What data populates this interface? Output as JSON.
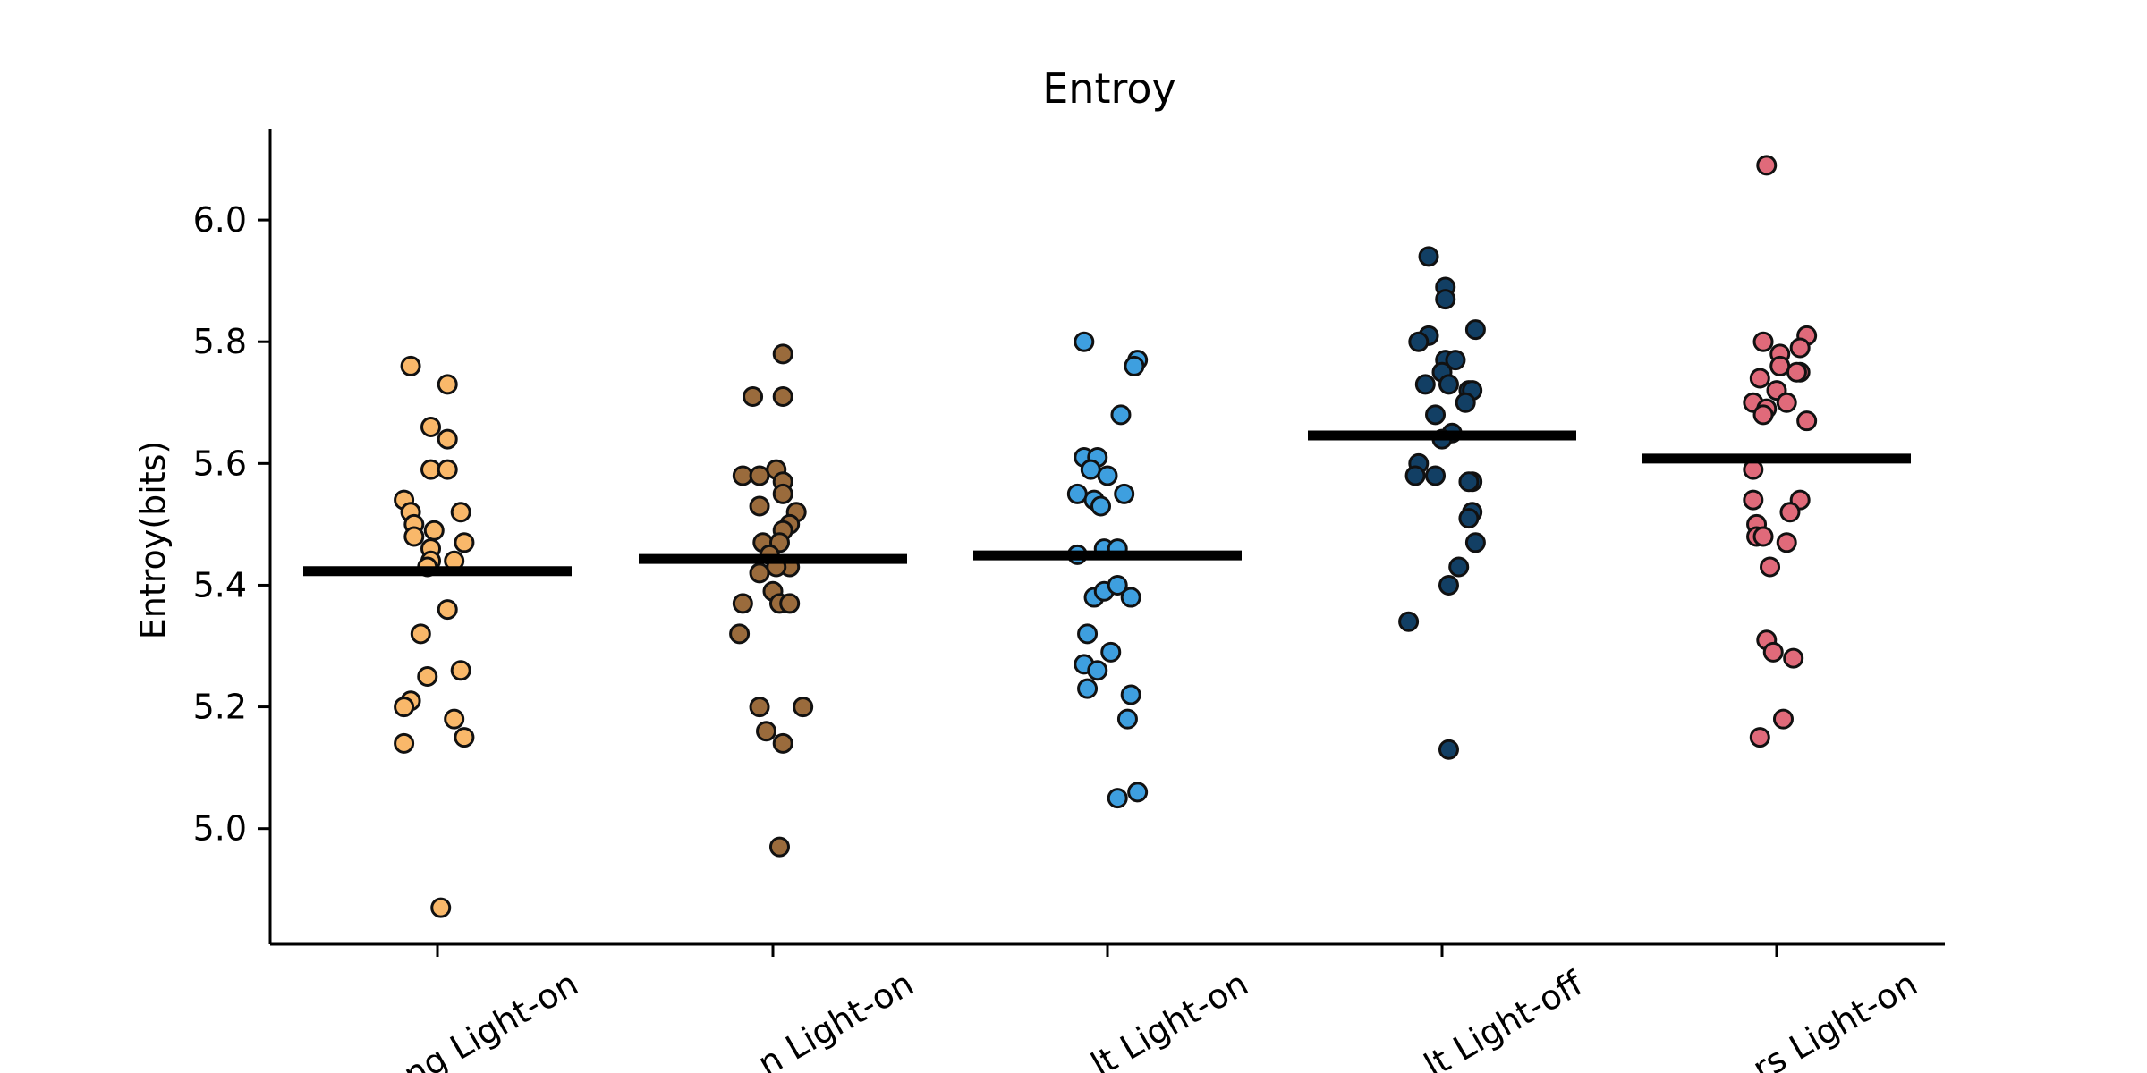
{
  "chart_data": {
    "type": "scatter",
    "title": "Entroy",
    "ylabel": "Entroy(bits)",
    "xlabel": "",
    "ylim": [
      4.81,
      6.15
    ],
    "yticks": [
      "5.0",
      "5.2",
      "5.4",
      "5.6",
      "5.8",
      "6.0"
    ],
    "grid": false,
    "categories": [
      "Young Light-on",
      "Middle-age Light-on",
      "Adult Light-on",
      "Adult Light-off",
      "Seniors Light-on"
    ],
    "tick_labels_visible": [
      "ng Light-on",
      "n Light-on",
      "lt Light-on",
      "lt Light-off",
      "rs Light-on"
    ],
    "series": [
      {
        "color": "#F9B86A",
        "mean": 5.423,
        "points": [
          [
            -0.08,
            5.76
          ],
          [
            0.03,
            5.73
          ],
          [
            -0.02,
            5.66
          ],
          [
            0.03,
            5.64
          ],
          [
            -0.02,
            5.59
          ],
          [
            0.03,
            5.59
          ],
          [
            -0.1,
            5.54
          ],
          [
            -0.08,
            5.52
          ],
          [
            0.07,
            5.52
          ],
          [
            -0.07,
            5.5
          ],
          [
            -0.07,
            5.48
          ],
          [
            -0.01,
            5.49
          ],
          [
            0.08,
            5.47
          ],
          [
            -0.02,
            5.46
          ],
          [
            -0.02,
            5.44
          ],
          [
            0.05,
            5.44
          ],
          [
            -0.03,
            5.43
          ],
          [
            0.03,
            5.36
          ],
          [
            -0.05,
            5.32
          ],
          [
            0.07,
            5.26
          ],
          [
            -0.03,
            5.25
          ],
          [
            -0.08,
            5.21
          ],
          [
            -0.1,
            5.2
          ],
          [
            0.05,
            5.18
          ],
          [
            -0.1,
            5.14
          ],
          [
            0.08,
            5.15
          ],
          [
            0.01,
            4.87
          ]
        ]
      },
      {
        "color": "#9A6B3C",
        "mean": 5.443,
        "points": [
          [
            0.03,
            5.78
          ],
          [
            -0.06,
            5.71
          ],
          [
            0.03,
            5.71
          ],
          [
            0.01,
            5.59
          ],
          [
            -0.09,
            5.58
          ],
          [
            -0.04,
            5.58
          ],
          [
            0.03,
            5.57
          ],
          [
            0.03,
            5.55
          ],
          [
            0.07,
            5.52
          ],
          [
            -0.04,
            5.53
          ],
          [
            0.05,
            5.5
          ],
          [
            0.03,
            5.49
          ],
          [
            -0.03,
            5.47
          ],
          [
            0.02,
            5.47
          ],
          [
            -0.01,
            5.45
          ],
          [
            0.05,
            5.43
          ],
          [
            0.01,
            5.43
          ],
          [
            -0.04,
            5.42
          ],
          [
            0.0,
            5.39
          ],
          [
            -0.09,
            5.37
          ],
          [
            0.02,
            5.37
          ],
          [
            0.05,
            5.37
          ],
          [
            -0.1,
            5.32
          ],
          [
            -0.04,
            5.2
          ],
          [
            0.09,
            5.2
          ],
          [
            -0.02,
            5.16
          ],
          [
            0.03,
            5.14
          ],
          [
            0.02,
            4.97
          ]
        ]
      },
      {
        "color": "#3E9FDF",
        "mean": 5.449,
        "points": [
          [
            -0.07,
            5.8
          ],
          [
            0.09,
            5.77
          ],
          [
            0.08,
            5.76
          ],
          [
            0.04,
            5.68
          ],
          [
            -0.07,
            5.61
          ],
          [
            -0.03,
            5.61
          ],
          [
            -0.05,
            5.59
          ],
          [
            0.0,
            5.58
          ],
          [
            -0.09,
            5.55
          ],
          [
            0.05,
            5.55
          ],
          [
            -0.04,
            5.54
          ],
          [
            -0.02,
            5.53
          ],
          [
            -0.01,
            5.46
          ],
          [
            0.03,
            5.46
          ],
          [
            -0.09,
            5.45
          ],
          [
            -0.04,
            5.38
          ],
          [
            -0.01,
            5.39
          ],
          [
            0.03,
            5.4
          ],
          [
            0.07,
            5.38
          ],
          [
            -0.06,
            5.32
          ],
          [
            0.01,
            5.29
          ],
          [
            -0.07,
            5.27
          ],
          [
            -0.03,
            5.26
          ],
          [
            -0.06,
            5.23
          ],
          [
            0.07,
            5.22
          ],
          [
            0.06,
            5.18
          ],
          [
            0.03,
            5.05
          ],
          [
            0.09,
            5.06
          ]
        ]
      },
      {
        "color": "#123F64",
        "mean": 5.646,
        "points": [
          [
            -0.04,
            5.94
          ],
          [
            0.01,
            5.89
          ],
          [
            0.01,
            5.87
          ],
          [
            0.1,
            5.82
          ],
          [
            -0.04,
            5.81
          ],
          [
            -0.07,
            5.8
          ],
          [
            0.01,
            5.77
          ],
          [
            0.04,
            5.77
          ],
          [
            0.0,
            5.75
          ],
          [
            -0.05,
            5.73
          ],
          [
            0.02,
            5.73
          ],
          [
            0.08,
            5.72
          ],
          [
            0.09,
            5.72
          ],
          [
            0.07,
            5.7
          ],
          [
            -0.02,
            5.68
          ],
          [
            0.03,
            5.65
          ],
          [
            0.0,
            5.64
          ],
          [
            -0.07,
            5.6
          ],
          [
            -0.08,
            5.58
          ],
          [
            -0.02,
            5.58
          ],
          [
            0.09,
            5.57
          ],
          [
            0.08,
            5.57
          ],
          [
            0.09,
            5.52
          ],
          [
            0.08,
            5.51
          ],
          [
            0.1,
            5.47
          ],
          [
            0.05,
            5.43
          ],
          [
            0.02,
            5.4
          ],
          [
            -0.1,
            5.34
          ],
          [
            0.02,
            5.13
          ]
        ]
      },
      {
        "color": "#E06A7A",
        "mean": 5.608,
        "points": [
          [
            -0.03,
            6.09
          ],
          [
            0.09,
            5.81
          ],
          [
            -0.04,
            5.8
          ],
          [
            0.07,
            5.79
          ],
          [
            0.01,
            5.78
          ],
          [
            0.07,
            5.75
          ],
          [
            0.01,
            5.76
          ],
          [
            -0.05,
            5.74
          ],
          [
            0.0,
            5.72
          ],
          [
            0.06,
            5.75
          ],
          [
            -0.07,
            5.7
          ],
          [
            -0.03,
            5.69
          ],
          [
            -0.04,
            5.68
          ],
          [
            0.03,
            5.7
          ],
          [
            0.09,
            5.67
          ],
          [
            -0.07,
            5.59
          ],
          [
            -0.07,
            5.54
          ],
          [
            0.07,
            5.54
          ],
          [
            0.04,
            5.52
          ],
          [
            -0.06,
            5.5
          ],
          [
            -0.06,
            5.48
          ],
          [
            -0.04,
            5.48
          ],
          [
            0.03,
            5.47
          ],
          [
            -0.02,
            5.43
          ],
          [
            -0.03,
            5.31
          ],
          [
            -0.01,
            5.29
          ],
          [
            0.05,
            5.28
          ],
          [
            0.02,
            5.18
          ],
          [
            -0.05,
            5.15
          ]
        ]
      }
    ]
  }
}
